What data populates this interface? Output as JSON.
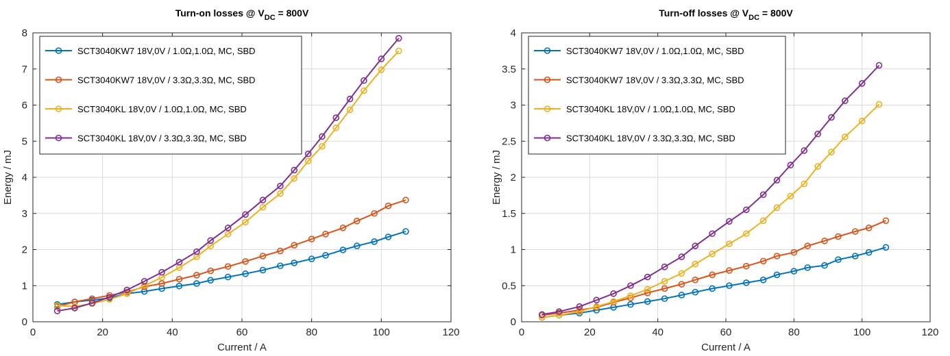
{
  "chart_data": [
    {
      "type": "line",
      "title_prefix": "Turn-on losses @ V",
      "title_sub": "DC",
      "title_suffix": " = 800V",
      "xlabel": "Current / A",
      "ylabel": "Energy / mJ",
      "xlim": [
        0,
        120
      ],
      "ylim": [
        0,
        8
      ],
      "xticks": [
        0,
        20,
        40,
        60,
        80,
        100,
        120
      ],
      "yticks": [
        0,
        1,
        2,
        3,
        4,
        5,
        6,
        7,
        8
      ],
      "grid": true,
      "legend_position": "top-left",
      "series": [
        {
          "name": "SCT3040KW7 18V,0V / 1.0Ω,1.0Ω, MC, SBD",
          "color": "#0072bd",
          "x": [
            7,
            12,
            17,
            22,
            27,
            32,
            37,
            42,
            47,
            51,
            56,
            61,
            66,
            71,
            75,
            80,
            84,
            89,
            93,
            98,
            102,
            107
          ],
          "y": [
            0.48,
            0.55,
            0.6,
            0.66,
            0.78,
            0.84,
            0.92,
            0.99,
            1.06,
            1.15,
            1.24,
            1.33,
            1.43,
            1.55,
            1.63,
            1.74,
            1.84,
            1.99,
            2.1,
            2.22,
            2.35,
            2.5
          ]
        },
        {
          "name": "SCT3040KW7 18V,0V / 3.3Ω,3.3Ω, MC, SBD",
          "color": "#d95319",
          "x": [
            7,
            12,
            17,
            22,
            27,
            32,
            37,
            42,
            47,
            51,
            56,
            61,
            66,
            71,
            75,
            80,
            84,
            89,
            93,
            98,
            102,
            107
          ],
          "y": [
            0.42,
            0.55,
            0.64,
            0.73,
            0.82,
            0.97,
            1.06,
            1.18,
            1.29,
            1.41,
            1.53,
            1.67,
            1.82,
            1.96,
            2.12,
            2.29,
            2.43,
            2.6,
            2.79,
            3.0,
            3.21,
            3.37
          ]
        },
        {
          "name": "SCT3040KL 18V,0V / 1.0Ω,1.0Ω, MC, SBD",
          "color": "#edb120",
          "x": [
            7,
            12,
            17,
            22,
            27,
            32,
            37,
            42,
            47,
            51,
            56,
            61,
            66,
            71,
            75,
            79,
            83,
            87,
            91,
            95,
            100,
            105
          ],
          "y": [
            0.45,
            0.42,
            0.5,
            0.62,
            0.78,
            1.0,
            1.23,
            1.5,
            1.8,
            2.1,
            2.43,
            2.76,
            3.17,
            3.55,
            3.97,
            4.45,
            4.86,
            5.37,
            5.87,
            6.4,
            6.98,
            7.5
          ]
        },
        {
          "name": "SCT3040KL 18V,0V / 3.3Ω,3.3Ω, MC, SBD",
          "color": "#7e2f8e",
          "x": [
            7,
            12,
            17,
            22,
            27,
            32,
            37,
            42,
            47,
            51,
            56,
            61,
            66,
            71,
            75,
            79,
            83,
            87,
            91,
            95,
            100,
            105
          ],
          "y": [
            0.3,
            0.38,
            0.52,
            0.68,
            0.88,
            1.12,
            1.37,
            1.65,
            1.94,
            2.25,
            2.6,
            2.97,
            3.37,
            3.76,
            4.2,
            4.65,
            5.13,
            5.65,
            6.17,
            6.68,
            7.28,
            7.85
          ]
        }
      ]
    },
    {
      "type": "line",
      "title_prefix": "Turn-off losses @ V",
      "title_sub": "DC",
      "title_suffix": " = 800V",
      "xlabel": "Current / A",
      "ylabel": "Energy / mJ",
      "xlim": [
        0,
        120
      ],
      "ylim": [
        0,
        4
      ],
      "xticks": [
        0,
        20,
        40,
        60,
        80,
        100,
        120
      ],
      "yticks": [
        0,
        0.5,
        1,
        1.5,
        2,
        2.5,
        3,
        3.5,
        4
      ],
      "grid": true,
      "legend_position": "top-left",
      "series": [
        {
          "name": "SCT3040KW7 18V,0V / 1.0Ω,1.0Ω, MC, SBD",
          "color": "#0072bd",
          "x": [
            6,
            11,
            17,
            22,
            27,
            32,
            37,
            42,
            47,
            51,
            56,
            61,
            66,
            71,
            75,
            80,
            84,
            89,
            93,
            98,
            102,
            107
          ],
          "y": [
            0.06,
            0.09,
            0.12,
            0.16,
            0.2,
            0.24,
            0.28,
            0.32,
            0.37,
            0.41,
            0.46,
            0.5,
            0.54,
            0.58,
            0.65,
            0.7,
            0.75,
            0.78,
            0.86,
            0.91,
            0.96,
            1.03
          ]
        },
        {
          "name": "SCT3040KW7 18V,0V / 3.3Ω,3.3Ω, MC, SBD",
          "color": "#d95319",
          "x": [
            6,
            11,
            17,
            22,
            27,
            32,
            37,
            42,
            47,
            51,
            56,
            61,
            66,
            71,
            75,
            80,
            84,
            89,
            93,
            98,
            102,
            107
          ],
          "y": [
            0.09,
            0.12,
            0.16,
            0.2,
            0.27,
            0.33,
            0.4,
            0.46,
            0.52,
            0.58,
            0.65,
            0.71,
            0.77,
            0.84,
            0.91,
            0.96,
            1.05,
            1.12,
            1.18,
            1.25,
            1.3,
            1.4
          ]
        },
        {
          "name": "SCT3040KL 18V,0V / 1.0Ω,1.0Ω, MC, SBD",
          "color": "#edb120",
          "x": [
            6,
            11,
            17,
            22,
            27,
            32,
            37,
            42,
            47,
            51,
            56,
            61,
            66,
            71,
            75,
            79,
            83,
            87,
            91,
            95,
            100,
            105
          ],
          "y": [
            0.06,
            0.09,
            0.14,
            0.21,
            0.28,
            0.36,
            0.45,
            0.56,
            0.67,
            0.8,
            0.94,
            1.08,
            1.22,
            1.4,
            1.58,
            1.74,
            1.91,
            2.15,
            2.35,
            2.56,
            2.78,
            3.01
          ]
        },
        {
          "name": "SCT3040KL 18V,0V / 3.3Ω,3.3Ω, MC, SBD",
          "color": "#7e2f8e",
          "x": [
            6,
            11,
            17,
            22,
            27,
            32,
            37,
            42,
            47,
            51,
            56,
            61,
            66,
            71,
            75,
            79,
            83,
            87,
            91,
            95,
            100,
            105
          ],
          "y": [
            0.1,
            0.14,
            0.21,
            0.3,
            0.39,
            0.5,
            0.62,
            0.76,
            0.9,
            1.05,
            1.22,
            1.39,
            1.55,
            1.76,
            1.96,
            2.17,
            2.37,
            2.6,
            2.83,
            3.06,
            3.3,
            3.55
          ]
        }
      ]
    }
  ]
}
